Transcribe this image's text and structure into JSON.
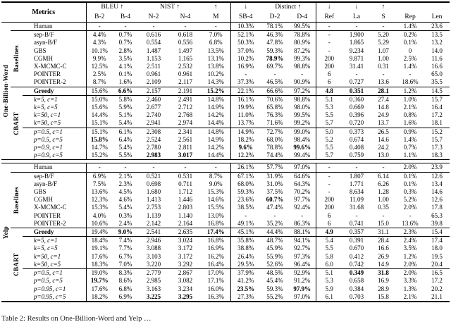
{
  "table": {
    "header": {
      "metrics_label": "Metrics",
      "groups": [
        {
          "label": "BLEU ↑",
          "span": 2
        },
        {
          "label": "NIST ↑",
          "span": 2
        },
        {
          "label": "↑",
          "span": 1
        },
        {
          "label": "↓",
          "span": 1
        },
        {
          "label": "Distinct ↑",
          "span": 2
        },
        {
          "label": "↓",
          "span": 1
        },
        {
          "label": "↓",
          "span": 1
        },
        {
          "label": "↑",
          "span": 1
        },
        {
          "label": "",
          "span": 1
        },
        {
          "label": "",
          "span": 1
        }
      ],
      "columns": [
        "B-2",
        "B-4",
        "N-2",
        "N-4",
        "M",
        "SB-4",
        "D-2",
        "D-4",
        "Ref",
        "La",
        "S",
        "Rep",
        "Len"
      ]
    },
    "sections": [
      {
        "dataset": "One-Billion-Word",
        "groups": [
          {
            "label": "Baselines",
            "from": 1,
            "to": 7
          },
          {
            "label": "CBART",
            "from": 8,
            "to": 16
          }
        ],
        "rules_above": [
          1,
          8,
          9,
          13
        ],
        "rows": [
          {
            "method": "Human",
            "style": "plain",
            "bold": [],
            "cells": [
              "-",
              "-",
              "-",
              "-",
              "-",
              "10.3%",
              "78.1%",
              "99.5%",
              "-",
              "-",
              "-",
              "1.4%",
              "23.6"
            ]
          },
          {
            "method": "sep-B/F",
            "style": "plain",
            "bold": [],
            "cells": [
              "4.4%",
              "0.7%",
              "0.616",
              "0.618",
              "7.0%",
              "52.1%",
              "46.3%",
              "78.8%",
              "-",
              "1.900",
              "5.20",
              "0.2%",
              "13.5"
            ]
          },
          {
            "method": "asyn-B/F",
            "style": "plain",
            "bold": [],
            "cells": [
              "4.3%",
              "0.7%",
              "0.554",
              "0.556",
              "6.8%",
              "50.3%",
              "47.8%",
              "80.9%",
              "-",
              "1.865",
              "5.29",
              "0.1%",
              "13.2"
            ]
          },
          {
            "method": "GBS",
            "style": "plain",
            "bold": [],
            "cells": [
              "10.1%",
              "2.8%",
              "1.487",
              "1.497",
              "13.5%",
              "37.0%",
              "59.3%",
              "87.2%",
              "-",
              "9.234",
              "1.07",
              "0",
              "14.0"
            ]
          },
          {
            "method": "CGMH",
            "style": "plain",
            "bold": [
              6
            ],
            "cells": [
              "9.9%",
              "3.5%",
              "1.153",
              "1.165",
              "13.1%",
              "10.2%",
              "78.9%",
              "99.3%",
              "200",
              "9.871",
              "1.00",
              "2.5%",
              "11.6"
            ]
          },
          {
            "method": "X-MCMC-C",
            "style": "plain",
            "bold": [],
            "cells": [
              "12.5%",
              "4.1%",
              "2.511",
              "2.532",
              "13.8%",
              "16.9%",
              "69.7%",
              "98.8%",
              "200",
              "31.41",
              "0.31",
              "1.4%",
              "16.6"
            ]
          },
          {
            "method": "POINTER",
            "style": "plain",
            "bold": [],
            "cells": [
              "2.5%",
              "0.1%",
              "0.961",
              "0.961",
              "10.2%",
              "-",
              "-",
              "-",
              "6",
              "-",
              "-",
              "-",
              "65.0"
            ]
          },
          {
            "method": "POINTER-2",
            "style": "plain",
            "bold": [],
            "cells": [
              "8.7%",
              "1.6%",
              "2.109",
              "2.117",
              "14.3%",
              "37.3%",
              "46.5%",
              "90.9%",
              "6",
              "0.727",
              "13.6",
              "18.6%",
              "35.5"
            ]
          },
          {
            "method": "Greedy",
            "style": "bold",
            "bold": [
              1,
              4,
              8,
              9,
              10
            ],
            "cells": [
              "15.6%",
              "6.6%",
              "2.157",
              "2.191",
              "15.2%",
              "22.1%",
              "66.6%",
              "97.2%",
              "4.8",
              "0.351",
              "28.1",
              "1.2%",
              "14.5"
            ]
          },
          {
            "method": "k=5, c=1",
            "style": "math",
            "bold": [],
            "cells": [
              "15.0%",
              "5.8%",
              "2.460",
              "2.491",
              "14.8%",
              "16.1%",
              "70.6%",
              "98.8%",
              "5.1",
              "0.360",
              "27.4",
              "1.0%",
              "15.7"
            ]
          },
          {
            "method": "k=5, c=5",
            "style": "math",
            "bold": [],
            "cells": [
              "15.6%",
              "5.9%",
              "2.677",
              "2.712",
              "14.9%",
              "19.9%",
              "65.8%",
              "98.0%",
              "5.3",
              "0.669",
              "14.8",
              "2.1%",
              "16.4"
            ]
          },
          {
            "method": "k=50, c=1",
            "style": "math",
            "bold": [],
            "cells": [
              "14.4%",
              "5.1%",
              "2.740",
              "2.768",
              "14.2%",
              "11.0%",
              "76.3%",
              "99.5%",
              "5.5",
              "0.396",
              "24.9",
              "0.8%",
              "17.2"
            ]
          },
          {
            "method": "k=50, c=5",
            "style": "math",
            "bold": [],
            "cells": [
              "15.1%",
              "5.4%",
              "2.941",
              "2.974",
              "14.4%",
              "13.7%",
              "71.6%",
              "99.2%",
              "5.7",
              "0.720",
              "13.7",
              "1.6%",
              "18.1"
            ]
          },
          {
            "method": "p=0.5, c=1",
            "style": "math",
            "bold": [],
            "cells": [
              "15.1%",
              "6.1%",
              "2.308",
              "2.341",
              "14.8%",
              "14.9%",
              "72.7%",
              "99.0%",
              "5.0",
              "0.373",
              "26.5",
              "0.9%",
              "15.2"
            ]
          },
          {
            "method": "p=0.5, c=5",
            "style": "math",
            "bold": [
              0
            ],
            "cells": [
              "15.8%",
              "6.4%",
              "2.524",
              "2.561",
              "14.9%",
              "18.2%",
              "68.0%",
              "98.4%",
              "5.2",
              "0.674",
              "14.6",
              "1.4%",
              "15.7"
            ]
          },
          {
            "method": "p=0.9, c=1",
            "style": "math",
            "bold": [
              5,
              7
            ],
            "cells": [
              "14.7%",
              "5.4%",
              "2.780",
              "2.811",
              "14.2%",
              "9.6%",
              "78.8%",
              "99.6%",
              "5.5",
              "0.408",
              "24.2",
              "0.7%",
              "17.3"
            ]
          },
          {
            "method": "p=0.9, c=5",
            "style": "math",
            "bold": [
              2,
              3
            ],
            "cells": [
              "15.2%",
              "5.5%",
              "2.983",
              "3.017",
              "14.4%",
              "12.2%",
              "74.4%",
              "99.4%",
              "5.7",
              "0.759",
              "13.0",
              "1.1%",
              "18.3"
            ]
          }
        ]
      },
      {
        "dataset": "Yelp",
        "groups": [
          {
            "label": "Baselines",
            "from": 1,
            "to": 7
          },
          {
            "label": "CBART",
            "from": 8,
            "to": 16
          }
        ],
        "rules_above": [
          1,
          8,
          9,
          13
        ],
        "rows": [
          {
            "method": "Human",
            "style": "plain",
            "bold": [],
            "cells": [
              "-",
              "-",
              "-",
              "-",
              "-",
              "26.1%",
              "57.7%",
              "97.0%",
              "-",
              "-",
              "-",
              "2.0%",
              "23.9"
            ]
          },
          {
            "method": "sep-B/F",
            "style": "plain",
            "bold": [],
            "cells": [
              "6.9%",
              "2.1%",
              "0.521",
              "0.531",
              "8.7%",
              "67.1%",
              "31.9%",
              "64.6%",
              "-",
              "1.807",
              "6.14",
              "0.1%",
              "12.6"
            ]
          },
          {
            "method": "asyn-B/F",
            "style": "plain",
            "bold": [],
            "cells": [
              "7.5%",
              "2.3%",
              "0.698",
              "0.711",
              "9.0%",
              "68.0%",
              "31.0%",
              "64.3%",
              "-",
              "1.771",
              "6.26",
              "0.1%",
              "13.4"
            ]
          },
          {
            "method": "GBS",
            "style": "plain",
            "bold": [],
            "cells": [
              "13.6%",
              "4.5%",
              "1.680",
              "1.712",
              "15.3%",
              "59.3%",
              "37.5%",
              "70.2%",
              "-",
              "8.634",
              "1.28",
              "0.3%",
              "14.6"
            ]
          },
          {
            "method": "CGMH",
            "style": "plain",
            "bold": [
              6
            ],
            "cells": [
              "12.3%",
              "4.6%",
              "1.413",
              "1.446",
              "14.6%",
              "23.6%",
              "60.7%",
              "97.7%",
              "200",
              "11.09",
              "1.00",
              "5.2%",
              "12.6"
            ]
          },
          {
            "method": "X-MCMC-C",
            "style": "plain",
            "bold": [],
            "cells": [
              "15.3%",
              "5.4%",
              "2.753",
              "2.803",
              "15.5%",
              "38.5%",
              "47.4%",
              "92.4%",
              "200",
              "31.68",
              "0.35",
              "2.0%",
              "17.8"
            ]
          },
          {
            "method": "POINTER",
            "style": "plain",
            "bold": [],
            "cells": [
              "4.0%",
              "0.3%",
              "1.139",
              "1.140",
              "13.0%",
              "-",
              "-",
              "-",
              "6",
              "-",
              "-",
              "-",
              "65.3"
            ]
          },
          {
            "method": "POINTER-2",
            "style": "plain",
            "bold": [],
            "cells": [
              "10.6%",
              "2.4%",
              "2.142",
              "2.164",
              "16.8%",
              "49.1%",
              "35.2%",
              "86.3%",
              "6",
              "0.741",
              "15.0",
              "13.6%",
              "39.8"
            ]
          },
          {
            "method": "Greedy",
            "style": "bold",
            "bold": [
              1,
              4,
              8
            ],
            "cells": [
              "19.4%",
              "9.0%",
              "2.541",
              "2.635",
              "17.4%",
              "45.1%",
              "44.4%",
              "88.1%",
              "4.9",
              "0.357",
              "31.1",
              "2.3%",
              "15.4"
            ]
          },
          {
            "method": "k=5, c=1",
            "style": "math",
            "bold": [],
            "cells": [
              "18.4%",
              "7.4%",
              "2.946",
              "3.024",
              "16.8%",
              "35.8%",
              "48.7%",
              "94.1%",
              "5.4",
              "0.391",
              "28.4",
              "2.4%",
              "17.4"
            ]
          },
          {
            "method": "k=5, c=5",
            "style": "math",
            "bold": [],
            "cells": [
              "19.1%",
              "7.7%",
              "3.088",
              "3.172",
              "16.9%",
              "38.8%",
              "45.9%",
              "92.7%",
              "5.5",
              "0.670",
              "16.6",
              "3.5%",
              "18.0"
            ]
          },
          {
            "method": "k=50, c=1",
            "style": "math",
            "bold": [],
            "cells": [
              "17.6%",
              "6.7%",
              "3.103",
              "3.172",
              "16.2%",
              "26.4%",
              "55.9%",
              "97.3%",
              "5.8",
              "0.412",
              "26.9",
              "1.2%",
              "19.5"
            ]
          },
          {
            "method": "k=50, c=5",
            "style": "math",
            "bold": [],
            "cells": [
              "18.3%",
              "7.0%",
              "3.220",
              "3.292",
              "16.4%",
              "29.5%",
              "52.6%",
              "96.4%",
              "6.0",
              "0.742",
              "14.9",
              "2.0%",
              "20.4"
            ]
          },
          {
            "method": "p=0.5, c=1",
            "style": "math",
            "bold": [
              9,
              10
            ],
            "cells": [
              "19.0%",
              "8.3%",
              "2.779",
              "2.867",
              "17.0%",
              "37.9%",
              "48.5%",
              "92.9%",
              "5.1",
              "0.349",
              "31.8",
              "2.0%",
              "16.5"
            ]
          },
          {
            "method": "p=0.5, c=5",
            "style": "math",
            "bold": [
              0
            ],
            "cells": [
              "19.7%",
              "8.6%",
              "2.985",
              "3.082",
              "17.1%",
              "41.2%",
              "45.4%",
              "91.2%",
              "5.3",
              "0.658",
              "16.9",
              "3.3%",
              "17.2"
            ]
          },
          {
            "method": "p=0.95, c=1",
            "style": "math",
            "bold": [
              5,
              7
            ],
            "cells": [
              "17.6%",
              "6.8%",
              "3.163",
              "3.234",
              "16.0%",
              "23.5%",
              "59.3%",
              "97.9%",
              "5.9",
              "0.384",
              "28.9",
              "1.3%",
              "20.2"
            ]
          },
          {
            "method": "p=0.95, c=5",
            "style": "math",
            "bold": [
              2,
              3
            ],
            "cells": [
              "18.2%",
              "6.9%",
              "3.225",
              "3.295",
              "16.3%",
              "27.3%",
              "55.2%",
              "97.0%",
              "6.1",
              "0.703",
              "15.8",
              "2.1%",
              "21.1"
            ]
          }
        ]
      }
    ]
  },
  "caption": "Table 2: Results on One-Billion-Word and Yelp …"
}
